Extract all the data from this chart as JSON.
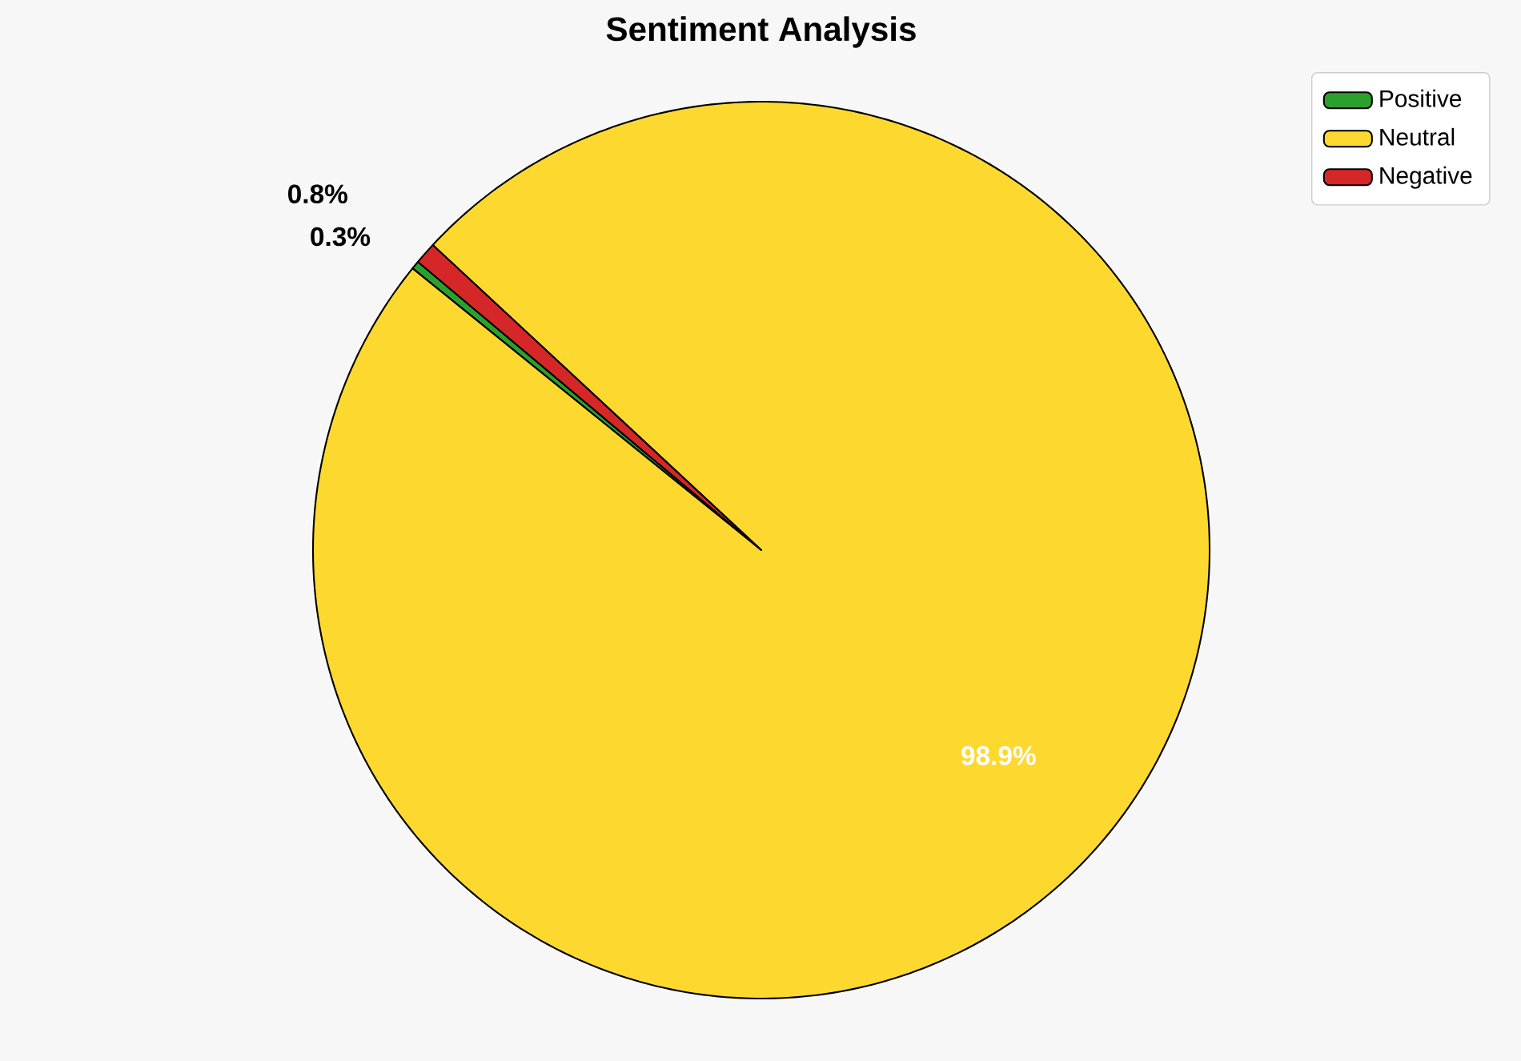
{
  "chart_data": {
    "type": "pie",
    "title": "Sentiment Analysis",
    "categories": [
      "Positive",
      "Neutral",
      "Negative"
    ],
    "values": [
      0.3,
      98.9,
      0.8
    ],
    "colors": [
      "#2ca02c",
      "#fdd930",
      "#d62728"
    ],
    "value_labels": [
      "0.3%",
      "98.9%",
      "0.8%"
    ],
    "legend": "top right"
  }
}
